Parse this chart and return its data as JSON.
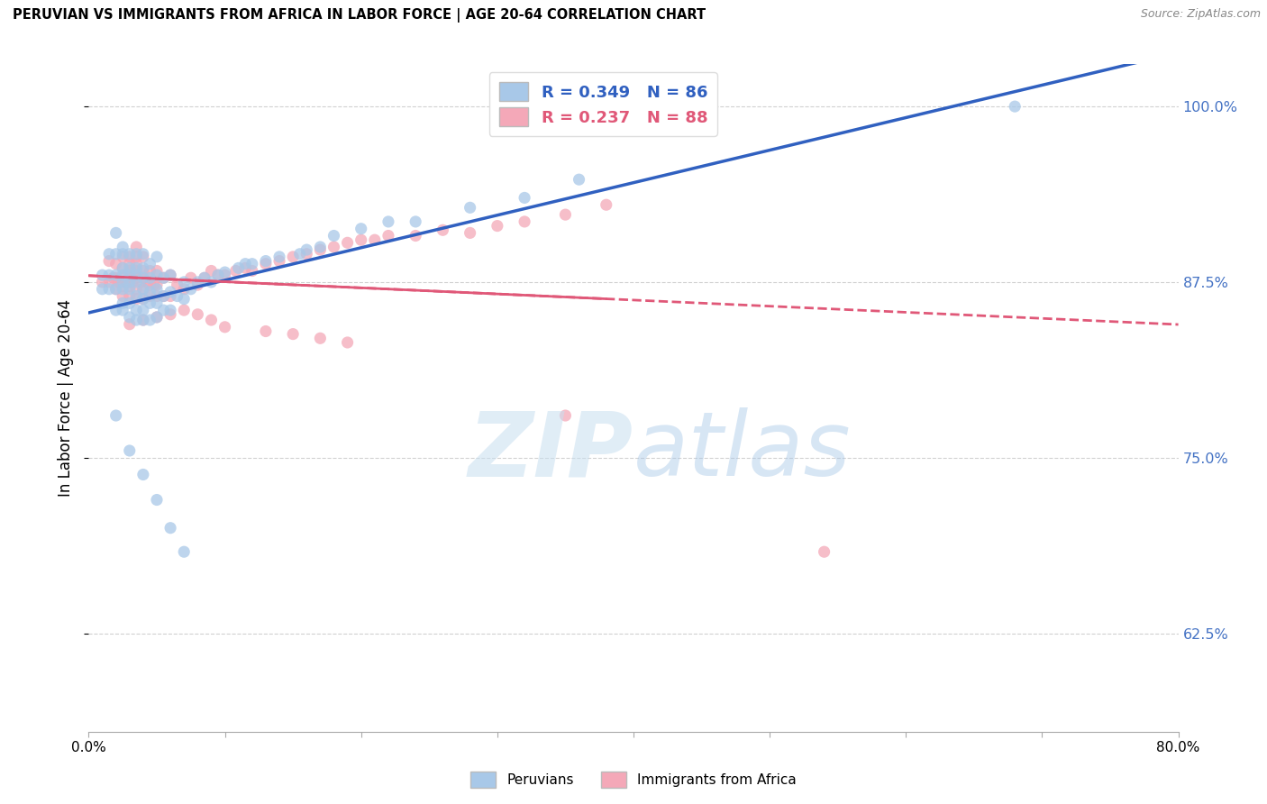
{
  "title": "PERUVIAN VS IMMIGRANTS FROM AFRICA IN LABOR FORCE | AGE 20-64 CORRELATION CHART",
  "source": "Source: ZipAtlas.com",
  "ylabel": "In Labor Force | Age 20-64",
  "xlim": [
    0.0,
    0.8
  ],
  "ylim": [
    0.555,
    1.03
  ],
  "yticks": [
    0.625,
    0.75,
    0.875,
    1.0
  ],
  "ytick_labels": [
    "62.5%",
    "75.0%",
    "87.5%",
    "100.0%"
  ],
  "xticks": [
    0.0,
    0.1,
    0.2,
    0.3,
    0.4,
    0.5,
    0.6,
    0.7,
    0.8
  ],
  "xtick_labels": [
    "0.0%",
    "",
    "",
    "",
    "",
    "",
    "",
    "",
    "80.0%"
  ],
  "blue_R": 0.349,
  "blue_N": 86,
  "pink_R": 0.237,
  "pink_N": 88,
  "blue_color": "#a8c8e8",
  "pink_color": "#f4a8b8",
  "blue_line_color": "#3060c0",
  "pink_line_color": "#e05878",
  "blue_scatter_x": [
    0.01,
    0.01,
    0.015,
    0.015,
    0.015,
    0.02,
    0.02,
    0.02,
    0.02,
    0.02,
    0.025,
    0.025,
    0.025,
    0.025,
    0.025,
    0.025,
    0.025,
    0.025,
    0.03,
    0.03,
    0.03,
    0.03,
    0.03,
    0.03,
    0.03,
    0.035,
    0.035,
    0.035,
    0.035,
    0.035,
    0.035,
    0.035,
    0.04,
    0.04,
    0.04,
    0.04,
    0.04,
    0.04,
    0.04,
    0.045,
    0.045,
    0.045,
    0.045,
    0.045,
    0.05,
    0.05,
    0.05,
    0.05,
    0.05,
    0.055,
    0.055,
    0.055,
    0.06,
    0.06,
    0.06,
    0.065,
    0.07,
    0.07,
    0.075,
    0.08,
    0.085,
    0.09,
    0.095,
    0.1,
    0.11,
    0.115,
    0.12,
    0.13,
    0.14,
    0.155,
    0.16,
    0.17,
    0.18,
    0.2,
    0.22,
    0.24,
    0.28,
    0.32,
    0.36,
    0.68,
    0.02,
    0.03,
    0.04,
    0.05,
    0.06,
    0.07
  ],
  "blue_scatter_y": [
    0.87,
    0.88,
    0.87,
    0.88,
    0.895,
    0.855,
    0.87,
    0.88,
    0.895,
    0.91,
    0.855,
    0.86,
    0.87,
    0.875,
    0.88,
    0.885,
    0.895,
    0.9,
    0.85,
    0.86,
    0.87,
    0.875,
    0.88,
    0.885,
    0.895,
    0.848,
    0.855,
    0.865,
    0.875,
    0.88,
    0.885,
    0.895,
    0.848,
    0.855,
    0.863,
    0.87,
    0.878,
    0.885,
    0.895,
    0.848,
    0.86,
    0.868,
    0.878,
    0.888,
    0.85,
    0.86,
    0.87,
    0.88,
    0.893,
    0.855,
    0.865,
    0.878,
    0.855,
    0.868,
    0.88,
    0.865,
    0.863,
    0.875,
    0.87,
    0.875,
    0.878,
    0.875,
    0.88,
    0.882,
    0.885,
    0.888,
    0.888,
    0.89,
    0.893,
    0.895,
    0.898,
    0.9,
    0.908,
    0.913,
    0.918,
    0.918,
    0.928,
    0.935,
    0.948,
    1.0,
    0.78,
    0.755,
    0.738,
    0.72,
    0.7,
    0.683
  ],
  "pink_scatter_x": [
    0.01,
    0.015,
    0.015,
    0.018,
    0.02,
    0.02,
    0.02,
    0.022,
    0.025,
    0.025,
    0.025,
    0.025,
    0.025,
    0.028,
    0.03,
    0.03,
    0.03,
    0.03,
    0.03,
    0.03,
    0.032,
    0.035,
    0.035,
    0.035,
    0.035,
    0.035,
    0.035,
    0.035,
    0.038,
    0.04,
    0.04,
    0.04,
    0.04,
    0.04,
    0.043,
    0.045,
    0.045,
    0.045,
    0.048,
    0.05,
    0.05,
    0.05,
    0.055,
    0.055,
    0.06,
    0.06,
    0.065,
    0.07,
    0.075,
    0.08,
    0.085,
    0.09,
    0.095,
    0.1,
    0.108,
    0.115,
    0.12,
    0.13,
    0.14,
    0.15,
    0.16,
    0.17,
    0.18,
    0.19,
    0.2,
    0.21,
    0.22,
    0.24,
    0.26,
    0.28,
    0.3,
    0.32,
    0.35,
    0.38,
    0.03,
    0.04,
    0.05,
    0.06,
    0.07,
    0.08,
    0.09,
    0.1,
    0.13,
    0.15,
    0.17,
    0.19,
    0.35,
    0.54
  ],
  "pink_scatter_y": [
    0.875,
    0.875,
    0.89,
    0.878,
    0.87,
    0.878,
    0.888,
    0.875,
    0.865,
    0.872,
    0.878,
    0.885,
    0.893,
    0.875,
    0.865,
    0.872,
    0.878,
    0.883,
    0.888,
    0.893,
    0.875,
    0.863,
    0.87,
    0.878,
    0.883,
    0.888,
    0.893,
    0.9,
    0.875,
    0.863,
    0.87,
    0.878,
    0.883,
    0.893,
    0.875,
    0.865,
    0.873,
    0.883,
    0.873,
    0.865,
    0.873,
    0.883,
    0.865,
    0.878,
    0.865,
    0.88,
    0.873,
    0.87,
    0.878,
    0.873,
    0.878,
    0.883,
    0.88,
    0.88,
    0.883,
    0.885,
    0.883,
    0.888,
    0.89,
    0.893,
    0.895,
    0.898,
    0.9,
    0.903,
    0.905,
    0.905,
    0.908,
    0.908,
    0.912,
    0.91,
    0.915,
    0.918,
    0.923,
    0.93,
    0.845,
    0.848,
    0.85,
    0.852,
    0.855,
    0.852,
    0.848,
    0.843,
    0.84,
    0.838,
    0.835,
    0.832,
    0.78,
    0.683
  ]
}
